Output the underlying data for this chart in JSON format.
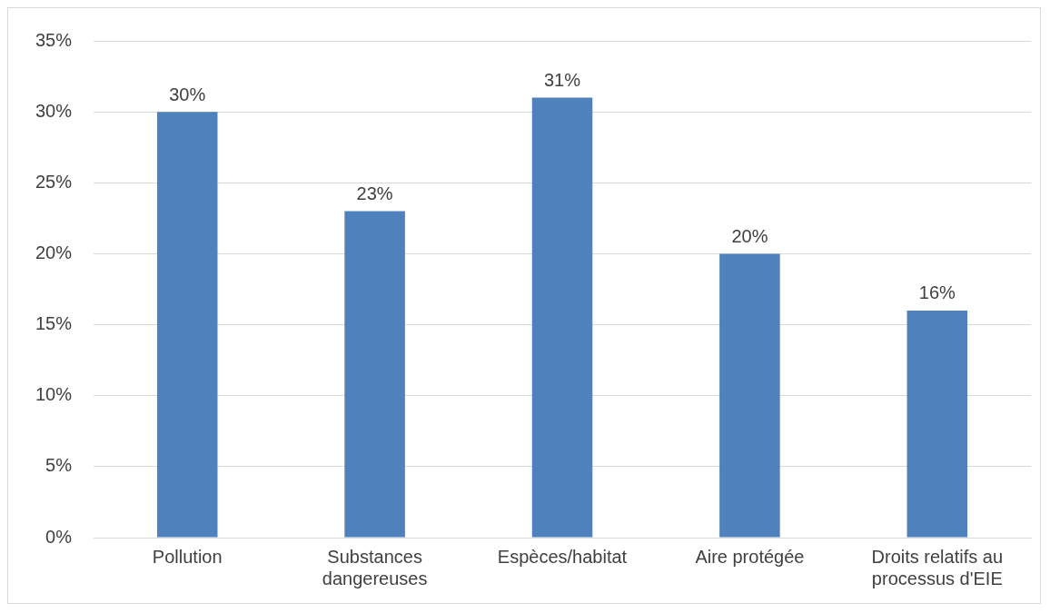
{
  "chart_data": {
    "type": "bar",
    "categories": [
      "Pollution",
      "Substances dangereuses",
      "Espèces/habitat",
      "Aire protégée",
      "Droits relatifs au processus d'EIE"
    ],
    "values": [
      30,
      23,
      31,
      20,
      16
    ],
    "value_labels": [
      "30%",
      "23%",
      "31%",
      "20%",
      "16%"
    ],
    "color": "#4f81bd",
    "ylim": [
      0,
      35
    ],
    "yticks": [
      {
        "value": 0,
        "label": "0%"
      },
      {
        "value": 5,
        "label": "5%"
      },
      {
        "value": 10,
        "label": "10%"
      },
      {
        "value": 15,
        "label": "15%"
      },
      {
        "value": 20,
        "label": "20%"
      },
      {
        "value": 25,
        "label": "25%"
      },
      {
        "value": 30,
        "label": "30%"
      },
      {
        "value": 35,
        "label": "35%"
      }
    ],
    "grid": "y",
    "legend": false
  }
}
